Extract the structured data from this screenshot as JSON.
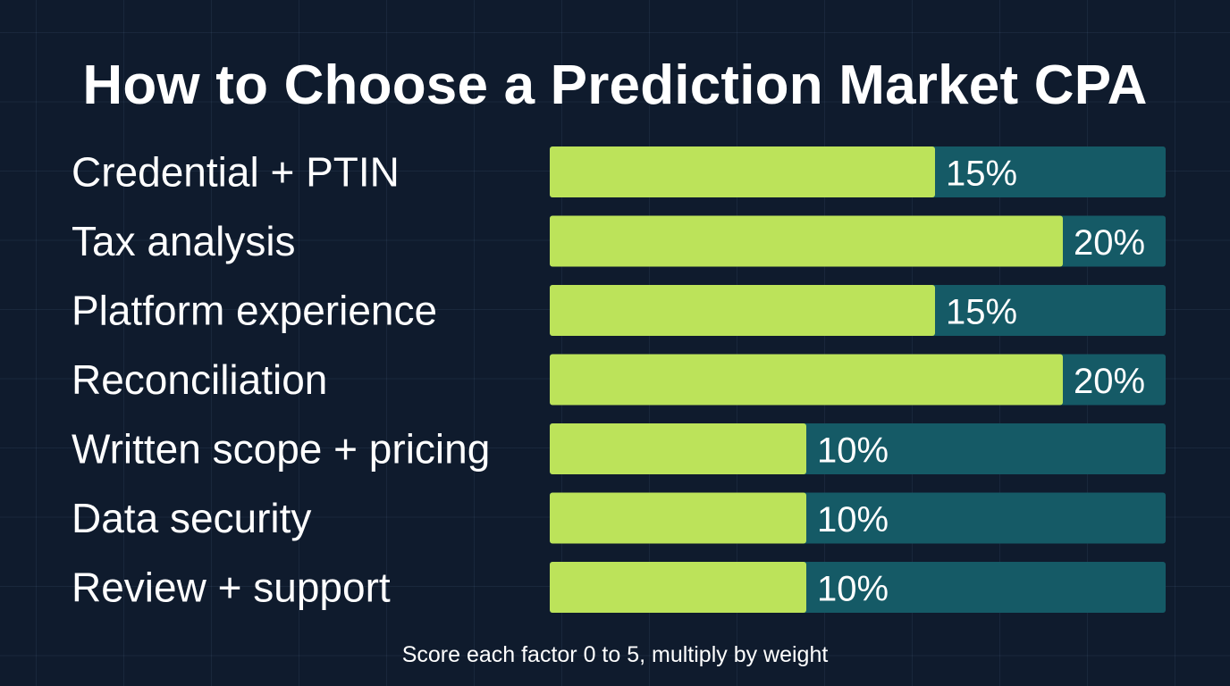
{
  "chart_data": {
    "type": "bar",
    "orientation": "horizontal",
    "title": "How to Choose a Prediction Market CPA",
    "categories": [
      "Credential + PTIN",
      "Tax analysis",
      "Platform experience",
      "Reconciliation",
      "Written scope + pricing",
      "Data security",
      "Review + support"
    ],
    "values": [
      15,
      20,
      15,
      20,
      10,
      10,
      10
    ],
    "value_labels": [
      "15%",
      "20%",
      "15%",
      "20%",
      "10%",
      "10%",
      "10%"
    ],
    "xlim": [
      0,
      24
    ],
    "grid": true,
    "colors": {
      "bar": "#bce35a",
      "track": "#155a66",
      "background": "#0f1b2d",
      "text": "#ffffff"
    }
  },
  "footnote": "Score each factor 0 to 5, multiply by weight"
}
